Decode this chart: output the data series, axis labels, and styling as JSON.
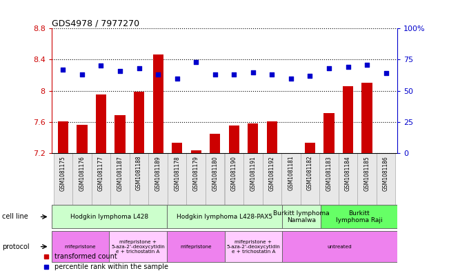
{
  "title": "GDS4978 / 7977270",
  "samples": [
    "GSM1081175",
    "GSM1081176",
    "GSM1081177",
    "GSM1081187",
    "GSM1081188",
    "GSM1081189",
    "GSM1081178",
    "GSM1081179",
    "GSM1081180",
    "GSM1081190",
    "GSM1081191",
    "GSM1081192",
    "GSM1081181",
    "GSM1081182",
    "GSM1081183",
    "GSM1081184",
    "GSM1081185",
    "GSM1081186"
  ],
  "bar_values": [
    7.61,
    7.56,
    7.95,
    7.69,
    7.99,
    8.47,
    7.33,
    7.24,
    7.45,
    7.55,
    7.58,
    7.61,
    7.2,
    7.33,
    7.71,
    8.06,
    8.1,
    7.2
  ],
  "dot_values": [
    67,
    63,
    70,
    66,
    68,
    63,
    60,
    73,
    63,
    63,
    65,
    63,
    60,
    62,
    68,
    69,
    71,
    64
  ],
  "ylim_left": [
    7.2,
    8.8
  ],
  "ylim_right": [
    0,
    100
  ],
  "yticks_left": [
    7.2,
    7.6,
    8.0,
    8.4,
    8.8
  ],
  "yticks_right": [
    0,
    25,
    50,
    75,
    100
  ],
  "ytick_labels_left": [
    "7.2",
    "7.6",
    "8",
    "8.4",
    "8.8"
  ],
  "ytick_labels_right": [
    "0",
    "25",
    "50",
    "75",
    "100%"
  ],
  "bar_color": "#cc0000",
  "dot_color": "#0000cc",
  "cell_line_groups": [
    {
      "label": "Hodgkin lymphoma L428",
      "start": 0,
      "end": 5,
      "color": "#ccffcc"
    },
    {
      "label": "Hodgkin lymphoma L428-PAX5",
      "start": 6,
      "end": 11,
      "color": "#ccffcc"
    },
    {
      "label": "Burkitt lymphoma\nNamalwa",
      "start": 12,
      "end": 13,
      "color": "#ccffcc"
    },
    {
      "label": "Burkitt\nlymphoma Raji",
      "start": 14,
      "end": 17,
      "color": "#66ff66"
    }
  ],
  "protocol_groups": [
    {
      "label": "mifepristone",
      "start": 0,
      "end": 2,
      "color": "#ee82ee"
    },
    {
      "label": "mifepristone +\n5-aza-2'-deoxycytidin\ne + trichostatin A",
      "start": 3,
      "end": 5,
      "color": "#ffccff"
    },
    {
      "label": "mifepristone",
      "start": 6,
      "end": 8,
      "color": "#ee82ee"
    },
    {
      "label": "mifepristone +\n5-aza-2'-deoxycytidin\ne + trichostatin A",
      "start": 9,
      "end": 11,
      "color": "#ffccff"
    },
    {
      "label": "untreated",
      "start": 12,
      "end": 17,
      "color": "#ee82ee"
    }
  ],
  "cell_line_label": "cell line",
  "protocol_label": "protocol",
  "legend_bar_label": "transformed count",
  "legend_dot_label": "percentile rank within the sample",
  "bg_color": "#ffffff"
}
